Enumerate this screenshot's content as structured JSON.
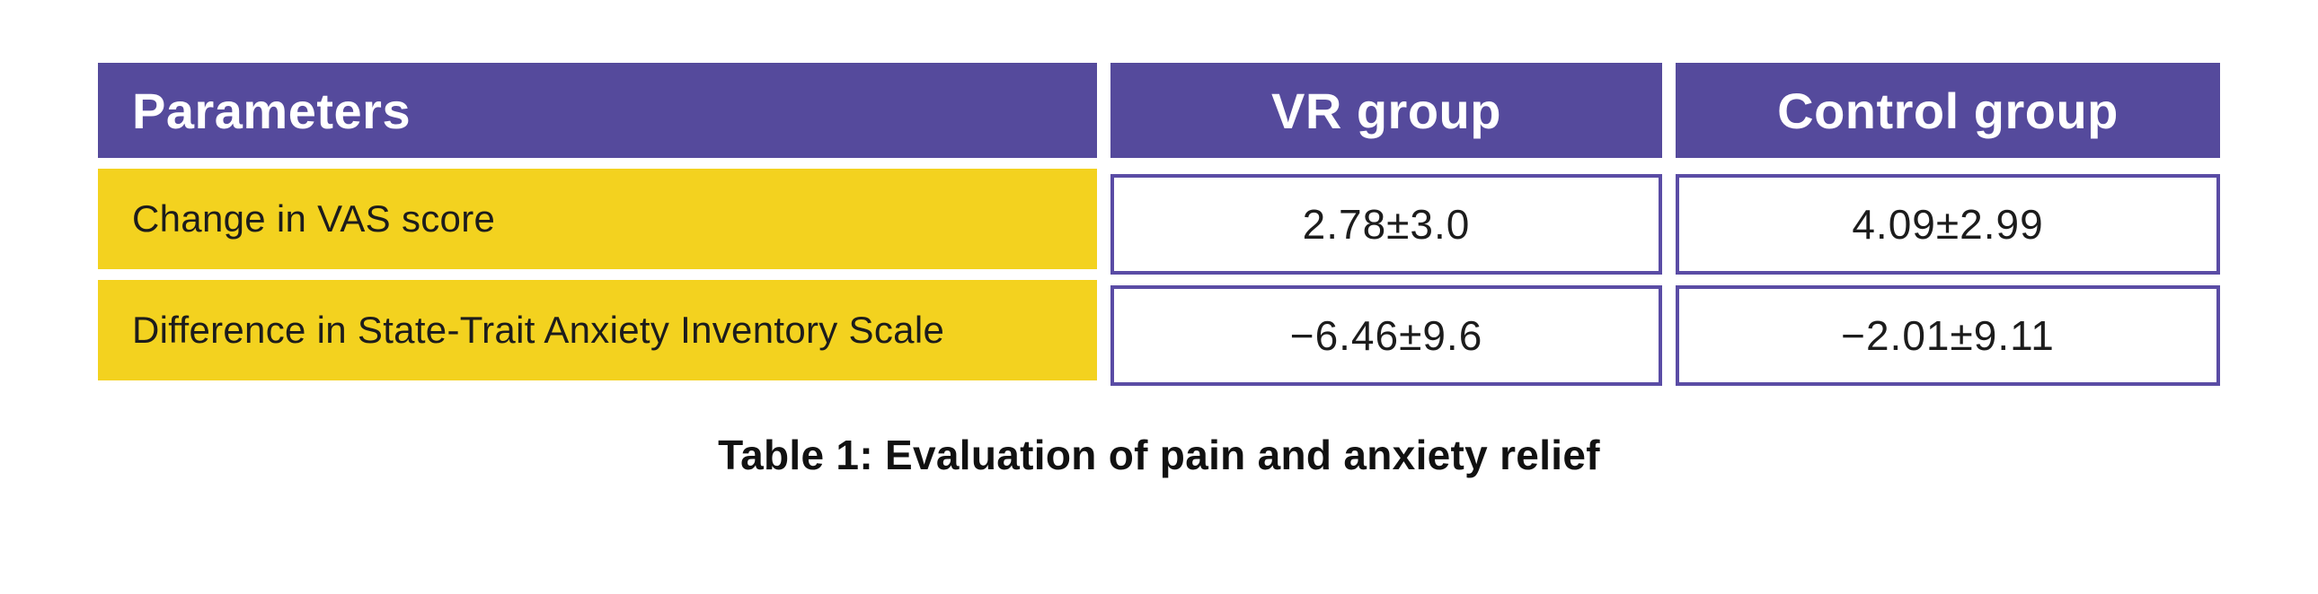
{
  "table": {
    "columns": [
      {
        "label": "Parameters"
      },
      {
        "label": "VR group"
      },
      {
        "label": "Control group"
      }
    ],
    "rows": [
      {
        "parameter": "Change in VAS score",
        "vr": "2.78±3.0",
        "control": "4.09±2.99"
      },
      {
        "parameter": "Difference in State-Trait Anxiety Inventory Scale",
        "vr": "−6.46±9.6",
        "control": "−2.01±9.11"
      }
    ],
    "caption": "Table 1: Evaluation of pain and anxiety relief"
  },
  "chart_data": {
    "type": "table",
    "title": "Table 1: Evaluation of pain and anxiety relief",
    "columns": [
      "Parameters",
      "VR group",
      "Control group"
    ],
    "rows": [
      [
        "Change in VAS score",
        "2.78±3.0",
        "4.09±2.99"
      ],
      [
        "Difference in State-Trait Anxiety Inventory Scale",
        "−6.46±9.6",
        "−2.01±9.11"
      ]
    ]
  },
  "colors": {
    "header_bg": "#554a9c",
    "header_text": "#ffffff",
    "param_bg": "#f3d21f",
    "cell_border": "#5a4ca5",
    "text": "#1c1c1c"
  }
}
